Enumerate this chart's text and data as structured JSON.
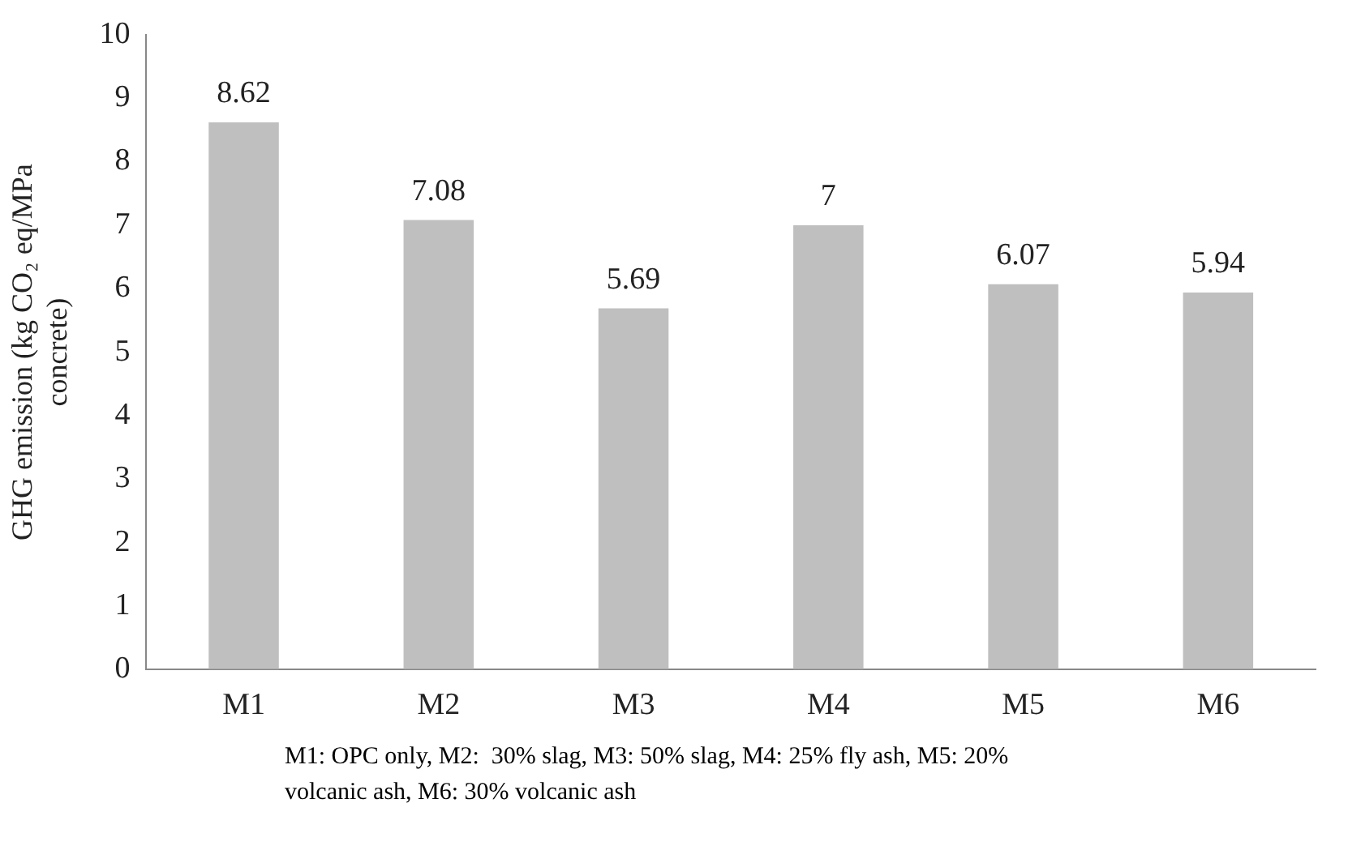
{
  "chart_data": {
    "type": "bar",
    "ylabel": "GHG emission (kg CO₂ eq/MPa concrete)",
    "categories": [
      "M1",
      "M2",
      "M3",
      "M4",
      "M5",
      "M6"
    ],
    "values": [
      8.62,
      7.08,
      5.69,
      7,
      6.07,
      5.94
    ],
    "color": "#bfbfbf",
    "ylim": [
      0,
      10
    ],
    "yticks": [
      0,
      1,
      2,
      3,
      4,
      5,
      6,
      7,
      8,
      9,
      10
    ],
    "grid": false,
    "legend": false,
    "data_labels": true,
    "annotations": [
      "M1: OPC only, M2:  30% slag, M3: 50% slag, M4: 25% fly ash, M5: 20% volcanic ash, M6: 30% volcanic ash"
    ]
  }
}
